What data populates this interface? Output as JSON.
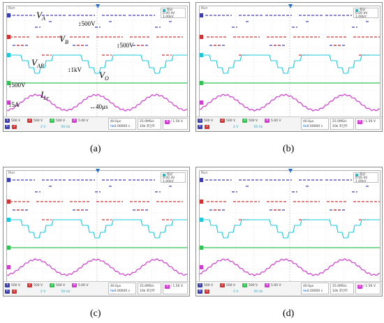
{
  "colors": {
    "vA": "#3c3cb4",
    "vB": "#d23232",
    "vAB": "#18c8dc",
    "vO": "#30c450",
    "iLr": "#d23cd2",
    "trigger": "#1f6fd0",
    "grid": "#d0d0d0"
  },
  "panels": [
    {
      "caption": "(a)",
      "run_label": "Run",
      "meas_label": "평균",
      "meas_value1": "0.00 dV",
      "meas_value2": "1.00kV",
      "ch1": "500 V",
      "ch2": "500 V",
      "ch3": "500 V",
      "ch4": "5.00 V",
      "ch_sub1": "2 V",
      "ch_sub2": "50 Hz",
      "timebase": "40.0μs",
      "trig_pos": "0.00000 s",
      "sample_rate": "25.0MS/s",
      "record": "10k 포인트",
      "trig_level": "1.56 V"
    },
    {
      "caption": "(b)",
      "run_label": "Run",
      "meas_label": "평균",
      "meas_value1": "0.00 dV",
      "meas_value2": "1.00kV",
      "ch1": "500 V",
      "ch2": "500 V",
      "ch3": "500 V",
      "ch4": "5.00 V",
      "ch_sub1": "2 V",
      "ch_sub2": "50 Hz",
      "timebase": "40.0μs",
      "trig_pos": "0.00000 s",
      "sample_rate": "25.0MS/s",
      "record": "10k 포인트",
      "trig_level": "1.56 V"
    },
    {
      "caption": "(c)",
      "run_label": "Run",
      "meas_label": "평균",
      "meas_value1": "0.00 dV",
      "meas_value2": "1.00kV",
      "ch1": "500 V",
      "ch2": "500 V",
      "ch3": "500 V",
      "ch4": "5.00 V",
      "ch_sub1": "2 V",
      "ch_sub2": "50 Hz",
      "timebase": "40.0μs",
      "trig_pos": "0.00000 s",
      "sample_rate": "25.0MS/s",
      "record": "10k 포인트",
      "trig_level": "1.56 V"
    },
    {
      "caption": "(d)",
      "run_label": "Run",
      "meas_label": "평균",
      "meas_value1": "0.00 dV",
      "meas_value2": "1.00kV",
      "ch1": "500 V",
      "ch2": "500 V",
      "ch3": "500 V",
      "ch4": "5.00 V",
      "ch_sub1": "2 V",
      "ch_sub2": "50 Hz",
      "timebase": "40.0μs",
      "trig_pos": "0.00000 s",
      "sample_rate": "25.0MS/s",
      "record": "10k 포인트",
      "trig_level": "1.56 V"
    }
  ],
  "annotations": {
    "va_main": "V",
    "va_sub": "A",
    "vb_main": "V",
    "vb_sub": "B",
    "vab_main": "V",
    "vab_sub": "AB",
    "vo_main": "V",
    "vo_sub": "O",
    "ilr_main": "I",
    "ilr_sub": "Lr",
    "scale_va": "500V",
    "scale_vb": "500V",
    "scale_vab": "1kV",
    "scale_vo": "500V",
    "scale_i": "5A",
    "scale_t": "40μs"
  }
}
